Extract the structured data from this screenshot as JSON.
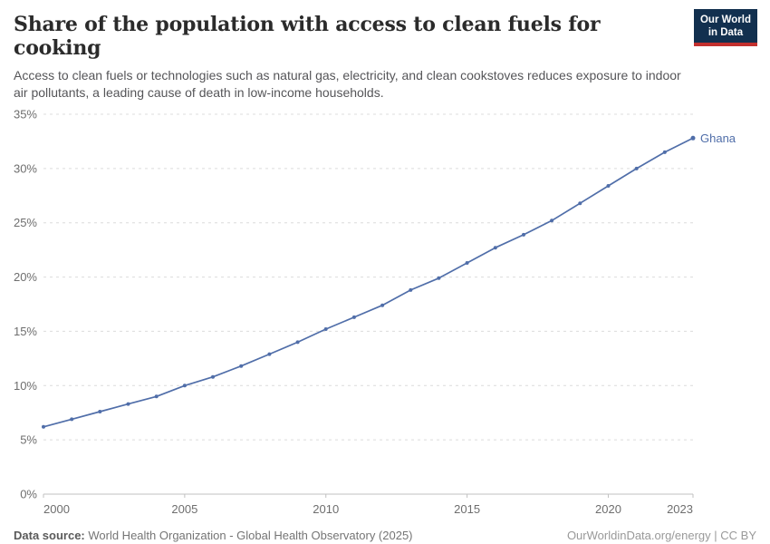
{
  "header": {
    "title": "Share of the population with access to clean fuels for cooking",
    "subtitle": "Access to clean fuels or technologies such as natural gas, electricity, and clean cookstoves reduces exposure to indoor air pollutants, a leading cause of death in low-income households.",
    "logo": {
      "line1": "Our World",
      "line2": "in Data"
    }
  },
  "footer": {
    "source_label": "Data source:",
    "source_value": " World Health Organization - Global Health Observatory (2025)",
    "credit": "OurWorldinData.org/energy | CC BY"
  },
  "colors": {
    "line": "#506ea9",
    "series_label": "#506ea9",
    "grid": "#dcdcdc",
    "axis": "#c0c0c0",
    "tick_text": "#6e6e6e",
    "logo_navy": "#12304f",
    "logo_red": "#c2302e"
  },
  "chart_data": {
    "type": "line",
    "title": "Share of the population with access to clean fuels for cooking",
    "xlabel": "",
    "ylabel": "",
    "xlim": [
      2000,
      2023
    ],
    "ylim": [
      0,
      35
    ],
    "grid": "horizontal-dashed",
    "legend_position": "end-of-line",
    "x_ticks": [
      "2000",
      "2005",
      "2010",
      "2015",
      "2020",
      "2023"
    ],
    "y_ticks": [
      "0%",
      "5%",
      "10%",
      "15%",
      "20%",
      "25%",
      "30%",
      "35%"
    ],
    "series": [
      {
        "name": "Ghana",
        "color": "#506ea9",
        "x": [
          2000,
          2001,
          2002,
          2003,
          2004,
          2005,
          2006,
          2007,
          2008,
          2009,
          2010,
          2011,
          2012,
          2013,
          2014,
          2015,
          2016,
          2017,
          2018,
          2019,
          2020,
          2021,
          2022,
          2023
        ],
        "values": [
          6.2,
          6.9,
          7.6,
          8.3,
          9.0,
          10.0,
          10.8,
          11.8,
          12.9,
          14.0,
          15.2,
          16.3,
          17.4,
          18.8,
          19.9,
          21.3,
          22.7,
          23.9,
          25.2,
          26.8,
          28.4,
          30.0,
          31.5,
          32.8
        ]
      }
    ]
  }
}
